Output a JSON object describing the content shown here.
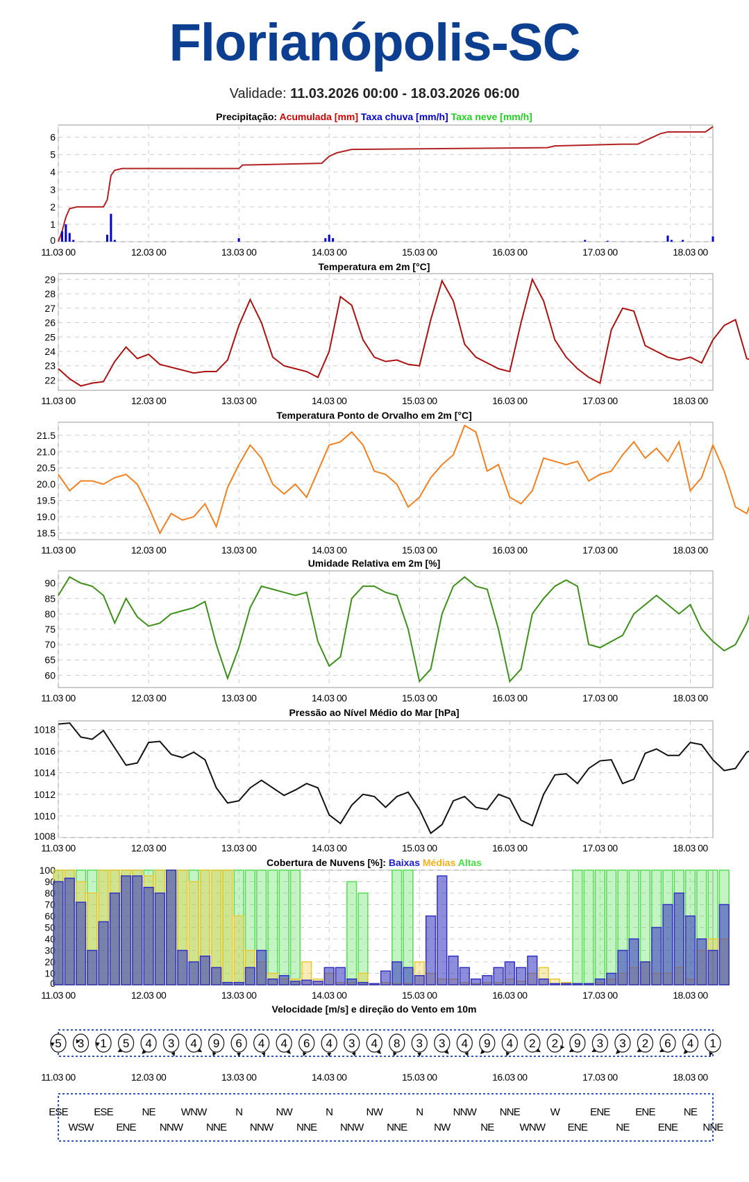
{
  "header": {
    "city": "Florianópolis-SC",
    "validity_label": "Validade:",
    "validity_range": "11.03.2026 00:00 - 18.03.2026 06:00"
  },
  "time_ticks": [
    "11.03 00",
    "12.03 00",
    "13.03 00",
    "14.03 00",
    "15.03 00",
    "16.03 00",
    "17.03 00",
    "18.03 00"
  ],
  "chart_data": [
    {
      "type": "line",
      "id": "precip",
      "title": [
        {
          "text": "Precipitação: ",
          "color": "#000000"
        },
        {
          "text": "Acumulada [mm] ",
          "color": "#cc0000"
        },
        {
          "text": "Taxa chuva [mm/h] ",
          "color": "#0000cc"
        },
        {
          "text": "Taxa neve [mm/h]",
          "color": "#22cc22"
        }
      ],
      "xlabel": "",
      "ylabel": "",
      "xlim_hours": [
        0,
        174
      ],
      "ylim": [
        0,
        6.7
      ],
      "yticks": [
        0,
        1,
        2,
        3,
        4,
        5,
        6
      ],
      "series": [
        {
          "name": "Acumulada [mm]",
          "color": "#b22222",
          "kind": "line",
          "points": [
            [
              0,
              0
            ],
            [
              1,
              0.6
            ],
            [
              2,
              1.4
            ],
            [
              3,
              1.9
            ],
            [
              5,
              2.0
            ],
            [
              12,
              2.0
            ],
            [
              13,
              2.4
            ],
            [
              14,
              3.8
            ],
            [
              15,
              4.1
            ],
            [
              17,
              4.2
            ],
            [
              48,
              4.2
            ],
            [
              49,
              4.4
            ],
            [
              70,
              4.5
            ],
            [
              72,
              4.9
            ],
            [
              74,
              5.1
            ],
            [
              78,
              5.3
            ],
            [
              130,
              5.4
            ],
            [
              132,
              5.5
            ],
            [
              150,
              5.6
            ],
            [
              154,
              5.6
            ],
            [
              160,
              6.2
            ],
            [
              162,
              6.3
            ],
            [
              172,
              6.3
            ],
            [
              174,
              6.6
            ]
          ]
        },
        {
          "name": "Taxa chuva [mm/h]",
          "color": "#0000cc",
          "kind": "bar",
          "points": [
            [
              1,
              0.6
            ],
            [
              2,
              1.0
            ],
            [
              3,
              0.5
            ],
            [
              4,
              0.1
            ],
            [
              13,
              0.4
            ],
            [
              14,
              1.6
            ],
            [
              15,
              0.1
            ],
            [
              48,
              0.2
            ],
            [
              71,
              0.2
            ],
            [
              72,
              0.4
            ],
            [
              73,
              0.2
            ],
            [
              140,
              0.1
            ],
            [
              146,
              0.05
            ],
            [
              162,
              0.35
            ],
            [
              163,
              0.1
            ],
            [
              166,
              0.1
            ],
            [
              174,
              0.3
            ]
          ]
        }
      ]
    },
    {
      "type": "line",
      "id": "temp",
      "title": [
        {
          "text": "Temperatura em 2m [°C]",
          "color": "#000000"
        }
      ],
      "xlim_hours": [
        0,
        174
      ],
      "ylim": [
        21.3,
        29.4
      ],
      "yticks": [
        22,
        23,
        24,
        25,
        26,
        27,
        28,
        29
      ],
      "series": [
        {
          "name": "Temperatura",
          "color": "#aa1111",
          "kind": "line",
          "step_hours": 3,
          "values": [
            22.8,
            22.1,
            21.6,
            21.8,
            21.9,
            23.3,
            24.3,
            23.5,
            23.8,
            23.1,
            22.9,
            22.7,
            22.5,
            22.6,
            22.6,
            23.4,
            25.8,
            27.6,
            26.0,
            23.6,
            23.0,
            22.8,
            22.6,
            22.2,
            24.0,
            27.8,
            27.2,
            24.8,
            23.6,
            23.3,
            23.4,
            23.1,
            23.0,
            26.2,
            28.9,
            27.5,
            24.5,
            23.6,
            23.2,
            22.8,
            22.6,
            26.0,
            29.0,
            27.5,
            24.8,
            23.6,
            22.8,
            22.2,
            21.8,
            25.5,
            27.0,
            26.8,
            24.4,
            24.0,
            23.6,
            23.4,
            23.6,
            23.2,
            24.8,
            25.8,
            26.2,
            23.5,
            23.3,
            22.9
          ]
        }
      ]
    },
    {
      "type": "line",
      "id": "dew",
      "title": [
        {
          "text": "Temperatura Ponto de Orvalho em 2m [°C]",
          "color": "#000000"
        }
      ],
      "xlim_hours": [
        0,
        174
      ],
      "ylim": [
        18.3,
        21.9
      ],
      "yticks": [
        18.5,
        19.0,
        19.5,
        20.0,
        20.5,
        21.0,
        21.5
      ],
      "series": [
        {
          "name": "Ponto de Orvalho",
          "color": "#f08020",
          "kind": "line",
          "step_hours": 3,
          "values": [
            20.3,
            19.8,
            20.1,
            20.1,
            20.0,
            20.2,
            20.3,
            20.0,
            19.3,
            18.5,
            19.1,
            18.9,
            19.0,
            19.4,
            18.7,
            19.9,
            20.6,
            21.2,
            20.8,
            20.0,
            19.7,
            20.0,
            19.6,
            20.4,
            21.2,
            21.3,
            21.6,
            21.2,
            20.4,
            20.3,
            20.0,
            19.3,
            19.6,
            20.2,
            20.6,
            20.9,
            21.8,
            21.6,
            20.4,
            20.6,
            19.6,
            19.4,
            19.8,
            20.8,
            20.7,
            20.6,
            20.7,
            20.1,
            20.3,
            20.4,
            20.9,
            21.3,
            20.8,
            21.1,
            20.7,
            21.3,
            19.8,
            20.2,
            21.2,
            20.4,
            19.3,
            19.1,
            20.0,
            21.5,
            20.9
          ]
        }
      ]
    },
    {
      "type": "line",
      "id": "humidity",
      "title": [
        {
          "text": "Umidade Relativa em 2m [%]",
          "color": "#000000"
        }
      ],
      "xlim_hours": [
        0,
        174
      ],
      "ylim": [
        56,
        94
      ],
      "yticks": [
        60,
        65,
        70,
        75,
        80,
        85,
        90
      ],
      "series": [
        {
          "name": "Umidade Relativa",
          "color": "#3d8f1a",
          "kind": "line",
          "step_hours": 3,
          "values": [
            86,
            92,
            90,
            89,
            86,
            77,
            85,
            79,
            76,
            77,
            80,
            81,
            82,
            84,
            70,
            59,
            69,
            82,
            89,
            88,
            87,
            86,
            87,
            71,
            63,
            66,
            85,
            89,
            89,
            87,
            86,
            75,
            58,
            62,
            80,
            89,
            92,
            89,
            88,
            75,
            58,
            62,
            80,
            85,
            89,
            91,
            89,
            70,
            69,
            71,
            73,
            80,
            83,
            86,
            83,
            80,
            83,
            75,
            71,
            68,
            70,
            77,
            88,
            92,
            88
          ]
        }
      ]
    },
    {
      "type": "line",
      "id": "pressure",
      "title": [
        {
          "text": "Pressão ao Nível Médio do Mar [hPa]",
          "color": "#000000"
        }
      ],
      "xlim_hours": [
        0,
        174
      ],
      "ylim": [
        1008,
        1018.8
      ],
      "yticks": [
        1008,
        1010,
        1012,
        1014,
        1016,
        1018
      ],
      "series": [
        {
          "name": "Pressão",
          "color": "#111111",
          "kind": "line",
          "step_hours": 3,
          "values": [
            1018.5,
            1018.6,
            1017.3,
            1017.1,
            1017.9,
            1016.3,
            1014.7,
            1014.9,
            1016.8,
            1016.9,
            1015.7,
            1015.4,
            1015.9,
            1015.2,
            1012.6,
            1011.2,
            1011.4,
            1012.6,
            1013.3,
            1012.6,
            1011.9,
            1012.4,
            1013.0,
            1012.6,
            1010.1,
            1009.3,
            1011.0,
            1012.0,
            1011.8,
            1010.8,
            1011.8,
            1012.2,
            1010.6,
            1008.4,
            1009.2,
            1011.4,
            1011.8,
            1010.8,
            1010.6,
            1012.0,
            1011.6,
            1009.6,
            1009.1,
            1012.0,
            1013.8,
            1013.9,
            1013.0,
            1014.4,
            1015.1,
            1015.2,
            1013.0,
            1013.4,
            1015.8,
            1016.2,
            1015.6,
            1015.6,
            1016.8,
            1016.6,
            1015.2,
            1014.2,
            1014.4,
            1015.9,
            1016.3,
            1015.3
          ]
        }
      ]
    },
    {
      "type": "bar",
      "id": "clouds",
      "title": [
        {
          "text": "Cobertura de Nuvens [%]: ",
          "color": "#000000"
        },
        {
          "text": "Baixas ",
          "color": "#1a1acc"
        },
        {
          "text": "Médias ",
          "color": "#f0b020"
        },
        {
          "text": "Altas",
          "color": "#44dd44"
        }
      ],
      "xlim_hours": [
        0,
        174
      ],
      "ylim": [
        0,
        100
      ],
      "yticks": [
        0,
        10,
        20,
        30,
        40,
        50,
        60,
        70,
        80,
        90,
        100
      ],
      "series": [
        {
          "name": "Altas",
          "color": "#55dd55",
          "kind": "bar",
          "step_hours": 3,
          "values": [
            100,
            100,
            100,
            100,
            100,
            100,
            100,
            100,
            100,
            100,
            100,
            100,
            100,
            100,
            100,
            100,
            100,
            100,
            100,
            100,
            100,
            100,
            0,
            0,
            0,
            0,
            90,
            80,
            0,
            0,
            100,
            100,
            0,
            0,
            0,
            0,
            0,
            0,
            0,
            0,
            0,
            0,
            0,
            0,
            0,
            0,
            100,
            100,
            100,
            100,
            100,
            100,
            100,
            100,
            100,
            100,
            100,
            100,
            100,
            100
          ]
        },
        {
          "name": "Médias",
          "color": "#e8c830",
          "kind": "bar",
          "step_hours": 3,
          "values": [
            100,
            100,
            90,
            80,
            100,
            100,
            100,
            100,
            95,
            100,
            100,
            100,
            90,
            100,
            100,
            100,
            60,
            30,
            20,
            10,
            5,
            5,
            20,
            5,
            10,
            2,
            2,
            10,
            1,
            2,
            1,
            1,
            20,
            10,
            5,
            5,
            2,
            1,
            2,
            2,
            5,
            3,
            10,
            15,
            5,
            2,
            1,
            1,
            2,
            5,
            10,
            15,
            20,
            10,
            10,
            15,
            5,
            30,
            40,
            40
          ]
        },
        {
          "name": "Baixas",
          "color": "#3030c0",
          "kind": "bar",
          "step_hours": 3,
          "values": [
            90,
            93,
            72,
            30,
            55,
            80,
            95,
            95,
            85,
            80,
            100,
            30,
            20,
            25,
            15,
            2,
            2,
            15,
            30,
            5,
            8,
            3,
            4,
            3,
            15,
            15,
            5,
            2,
            1,
            12,
            20,
            15,
            8,
            60,
            95,
            25,
            15,
            5,
            8,
            15,
            20,
            15,
            25,
            5,
            1,
            1,
            1,
            1,
            5,
            10,
            30,
            40,
            20,
            50,
            70,
            80,
            60,
            40,
            30,
            70
          ]
        }
      ]
    }
  ],
  "wind": {
    "title": "Velocidade [m/s] e direção do Vento em 10m",
    "speeds": [
      5,
      3,
      1,
      5,
      4,
      3,
      4,
      9,
      6,
      4,
      4,
      6,
      4,
      3,
      4,
      8,
      3,
      3,
      4,
      9,
      4,
      2,
      2,
      9,
      3,
      3,
      2,
      6,
      4,
      1
    ],
    "directions": [
      "ESE",
      "WSW",
      "ESE",
      "ENE",
      "NE",
      "NNW",
      "WNW",
      "NNE",
      "N",
      "NNW",
      "NW",
      "NNE",
      "N",
      "NNW",
      "NW",
      "NNE",
      "N",
      "NW",
      "NNW",
      "NE",
      "NNE",
      "WNW",
      "W",
      "ENE",
      "ENE",
      "NE",
      "ENE",
      "ENE",
      "NE",
      "NNE"
    ],
    "arrow_angles_deg": [
      300,
      330,
      300,
      240,
      225,
      160,
      120,
      200,
      180,
      160,
      135,
      200,
      180,
      160,
      135,
      200,
      180,
      135,
      160,
      225,
      200,
      120,
      90,
      240,
      240,
      225,
      240,
      240,
      225,
      200
    ]
  }
}
